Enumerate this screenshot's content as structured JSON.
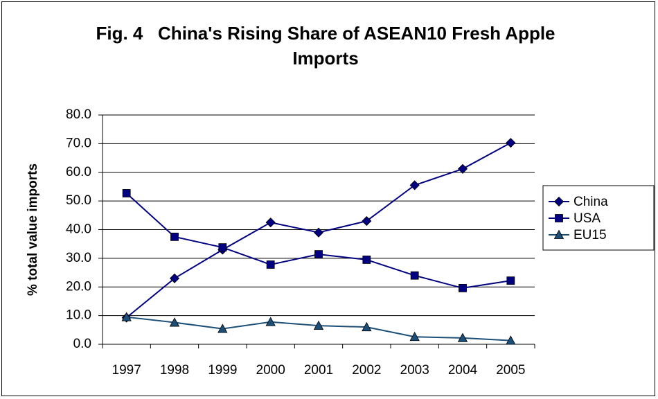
{
  "chart_data": {
    "type": "line",
    "title": "Fig. 4   China's Rising Share of ASEAN10 Fresh Apple Imports",
    "y_label": "% total value imports",
    "categories": [
      "1997",
      "1998",
      "1999",
      "2000",
      "2001",
      "2002",
      "2003",
      "2004",
      "2005"
    ],
    "series": [
      {
        "name": "China",
        "color": "#000080",
        "marker": "diamond",
        "values": [
          9.3,
          23.0,
          33.0,
          42.5,
          39.0,
          43.0,
          55.5,
          61.2,
          70.3
        ]
      },
      {
        "name": "USA",
        "color": "#000080",
        "marker": "square",
        "values": [
          52.7,
          37.5,
          33.8,
          27.8,
          31.4,
          29.5,
          24.0,
          19.6,
          22.2
        ]
      },
      {
        "name": "EU15",
        "color": "#1c4f78",
        "marker": "triangle",
        "values": [
          9.5,
          7.6,
          5.4,
          7.8,
          6.5,
          6.0,
          2.6,
          2.2,
          1.3
        ]
      }
    ],
    "ylim": [
      0,
      80
    ],
    "yticks": [
      {
        "value": 0,
        "label": "0.0"
      },
      {
        "value": 10,
        "label": "10.0"
      },
      {
        "value": 20,
        "label": "20.0"
      },
      {
        "value": 30,
        "label": "30.0"
      },
      {
        "value": 40,
        "label": "40.0"
      },
      {
        "value": 50,
        "label": "50.0"
      },
      {
        "value": 60,
        "label": "60.0"
      },
      {
        "value": 70,
        "label": "70.0"
      },
      {
        "value": 80,
        "label": "80.0"
      }
    ],
    "grid": true,
    "legend": "right"
  }
}
